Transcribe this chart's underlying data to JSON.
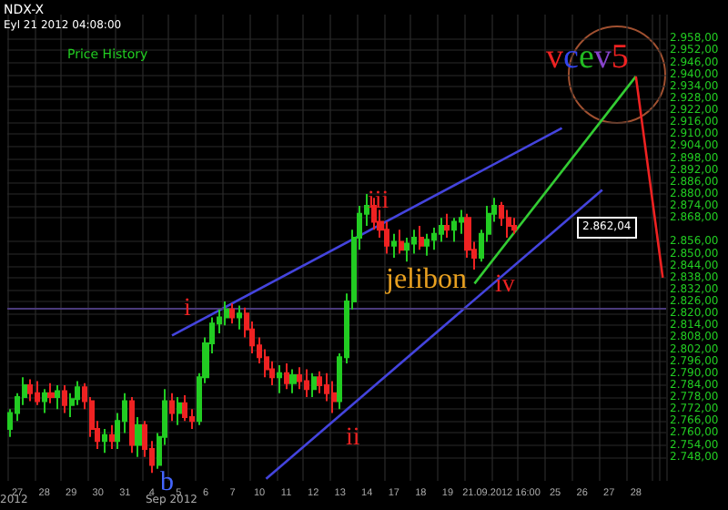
{
  "chart_data": {
    "type": "candlestick",
    "title": "NDX-X",
    "subtitle": "Eyl 21 2012 04:08:00",
    "categories": [
      null,
      "27",
      null,
      null,
      null,
      "28",
      null,
      null,
      null,
      "29",
      null,
      null,
      null,
      "30",
      null,
      null,
      null,
      "31",
      null,
      null,
      null,
      "4",
      null,
      null,
      null,
      "5",
      null,
      null,
      null,
      "6",
      null,
      null,
      null,
      "7",
      null,
      null,
      null,
      "10",
      null,
      null,
      null,
      "11",
      null,
      null,
      null,
      "12",
      null,
      null,
      null,
      "13",
      null,
      null,
      null,
      "14",
      null,
      null,
      null,
      "17",
      null,
      null,
      null,
      "18",
      null,
      null,
      null,
      "19",
      null,
      null,
      null,
      null,
      null,
      null,
      null,
      "21.09.2012 16:00",
      null,
      null,
      null,
      null,
      null,
      null,
      null,
      "25",
      null,
      null,
      null,
      "26",
      null,
      null,
      null,
      "27",
      null,
      null,
      null,
      "28",
      null,
      null,
      null,
      null
    ],
    "series": [
      {
        "name": "Price History",
        "colors": [
          "#22cc22",
          "#22cc22",
          "#22cc22",
          "#ee2222",
          "#ee2222",
          "#22cc22",
          "#ee2222",
          "#22cc22",
          "#ee2222",
          "#22cc22",
          "#22cc22",
          "#ee2222",
          "#ee2222",
          "#ee2222",
          "#22cc22",
          "#ee2222",
          "#22cc22",
          "#22cc22",
          "#ee2222",
          "#22cc22",
          "#ee2222",
          "#ee2222",
          "#22cc22",
          "#22cc22",
          "#ee2222",
          "#22cc22",
          "#ee2222",
          "#ee2222",
          "#22cc22",
          "#22cc22",
          "#22cc22",
          "#22cc22",
          "#22cc22",
          "#ee2222",
          "#22cc22",
          "#ee2222",
          "#ee2222",
          "#ee2222",
          "#ee2222",
          "#ee2222",
          "#22cc22",
          "#ee2222",
          "#22cc22",
          "#ee2222",
          "#ee2222",
          "#22cc22",
          "#ee2222",
          "#ee2222",
          "#ee2222",
          "#22cc22",
          "#22cc22",
          "#22cc22",
          "#22cc22",
          "#22cc22",
          "#ee2222",
          "#ee2222",
          "#ee2222",
          "#22cc22",
          "#ee2222",
          "#22cc22",
          "#22cc22",
          "#ee2222",
          "#22cc22",
          "#22cc22",
          "#22cc22",
          "#ee2222",
          "#22cc22",
          "#22cc22",
          "#ee2222",
          "#ee2222",
          "#22cc22",
          "#22cc22",
          "#22cc22",
          "#ee2222",
          "#ee2222",
          "#ee2222",
          null,
          null,
          null,
          null,
          null,
          null,
          null,
          null,
          null,
          null,
          null,
          null,
          null,
          null,
          null,
          null,
          null,
          null,
          null,
          null,
          null,
          null
        ],
        "ohlc": [
          [
            2762,
            2772,
            2758,
            2770
          ],
          [
            2770,
            2780,
            2766,
            2778
          ],
          [
            2778,
            2788,
            2774,
            2784
          ],
          [
            2784,
            2787,
            2776,
            2780
          ],
          [
            2780,
            2786,
            2774,
            2776
          ],
          [
            2776,
            2782,
            2770,
            2780
          ],
          [
            2780,
            2785,
            2775,
            2778
          ],
          [
            2778,
            2784,
            2772,
            2781
          ],
          [
            2781,
            2784,
            2770,
            2774
          ],
          [
            2774,
            2780,
            2768,
            2777
          ],
          [
            2777,
            2786,
            2774,
            2783
          ],
          [
            2783,
            2785,
            2772,
            2776
          ],
          [
            2776,
            2778,
            2758,
            2762
          ],
          [
            2762,
            2766,
            2752,
            2756
          ],
          [
            2756,
            2762,
            2750,
            2759
          ],
          [
            2759,
            2764,
            2752,
            2756
          ],
          [
            2756,
            2770,
            2752,
            2766
          ],
          [
            2766,
            2780,
            2760,
            2776
          ],
          [
            2776,
            2778,
            2750,
            2754
          ],
          [
            2754,
            2768,
            2748,
            2764
          ],
          [
            2764,
            2766,
            2748,
            2752
          ],
          [
            2752,
            2756,
            2740,
            2744
          ],
          [
            2744,
            2760,
            2742,
            2758
          ],
          [
            2758,
            2782,
            2754,
            2776
          ],
          [
            2776,
            2780,
            2766,
            2770
          ],
          [
            2770,
            2778,
            2764,
            2775
          ],
          [
            2775,
            2779,
            2766,
            2768
          ],
          [
            2768,
            2772,
            2762,
            2766
          ],
          [
            2766,
            2790,
            2764,
            2788
          ],
          [
            2788,
            2808,
            2785,
            2805
          ],
          [
            2805,
            2818,
            2800,
            2815
          ],
          [
            2815,
            2822,
            2810,
            2818
          ],
          [
            2818,
            2826,
            2814,
            2822
          ],
          [
            2822,
            2825,
            2815,
            2818
          ],
          [
            2818,
            2824,
            2812,
            2820
          ],
          [
            2820,
            2823,
            2808,
            2812
          ],
          [
            2812,
            2816,
            2800,
            2804
          ],
          [
            2804,
            2808,
            2795,
            2798
          ],
          [
            2798,
            2802,
            2788,
            2792
          ],
          [
            2792,
            2796,
            2784,
            2788
          ],
          [
            2788,
            2794,
            2780,
            2790
          ],
          [
            2790,
            2795,
            2782,
            2785
          ],
          [
            2785,
            2792,
            2780,
            2789
          ],
          [
            2789,
            2793,
            2782,
            2786
          ],
          [
            2786,
            2792,
            2778,
            2782
          ],
          [
            2782,
            2790,
            2778,
            2788
          ],
          [
            2788,
            2791,
            2780,
            2784
          ],
          [
            2784,
            2790,
            2776,
            2780
          ],
          [
            2780,
            2786,
            2770,
            2776
          ],
          [
            2776,
            2800,
            2772,
            2798
          ],
          [
            2798,
            2830,
            2795,
            2826
          ],
          [
            2826,
            2862,
            2822,
            2858
          ],
          [
            2858,
            2874,
            2852,
            2870
          ],
          [
            2870,
            2880,
            2864,
            2874
          ],
          [
            2874,
            2878,
            2862,
            2866
          ],
          [
            2866,
            2872,
            2858,
            2862
          ],
          [
            2862,
            2866,
            2850,
            2854
          ],
          [
            2854,
            2860,
            2848,
            2856
          ],
          [
            2856,
            2862,
            2850,
            2852
          ],
          [
            2852,
            2858,
            2846,
            2855
          ],
          [
            2855,
            2862,
            2850,
            2858
          ],
          [
            2858,
            2864,
            2852,
            2854
          ],
          [
            2854,
            2860,
            2849,
            2857
          ],
          [
            2857,
            2863,
            2852,
            2860
          ],
          [
            2860,
            2868,
            2856,
            2864
          ],
          [
            2864,
            2870,
            2858,
            2862
          ],
          [
            2862,
            2868,
            2856,
            2866
          ],
          [
            2866,
            2872,
            2860,
            2868
          ],
          [
            2868,
            2870,
            2848,
            2852
          ],
          [
            2852,
            2856,
            2842,
            2848
          ],
          [
            2848,
            2862,
            2846,
            2860
          ],
          [
            2860,
            2874,
            2856,
            2870
          ],
          [
            2870,
            2878,
            2866,
            2874
          ],
          [
            2874,
            2876,
            2864,
            2868
          ],
          [
            2868,
            2872,
            2858,
            2864
          ],
          [
            2864,
            2868,
            2860,
            2862.04
          ],
          null,
          null,
          null,
          null,
          null,
          null,
          null,
          null,
          null,
          null,
          null,
          null,
          null,
          null,
          null,
          null,
          null,
          null,
          null,
          null,
          null,
          null
        ]
      },
      {
        "type": "line",
        "color": "#4444dd",
        "values": [
          null,
          null,
          null,
          null,
          null,
          null,
          null,
          null,
          null,
          null,
          null,
          null,
          null,
          null,
          null,
          null,
          null,
          null,
          null,
          null,
          null,
          null,
          null,
          null,
          2809,
          null,
          null,
          null,
          null,
          null,
          null,
          null,
          null,
          null,
          null,
          null,
          null,
          null,
          null,
          null,
          null,
          null,
          null,
          null,
          null,
          null,
          null,
          null,
          null,
          null,
          null,
          null,
          null,
          null,
          null,
          null,
          null,
          null,
          null,
          null,
          null,
          null,
          null,
          null,
          null,
          null,
          null,
          null,
          null,
          null,
          null,
          null,
          null,
          null,
          null,
          null,
          null,
          null,
          null,
          null,
          null,
          null,
          2913,
          null,
          null,
          null,
          null,
          null,
          null,
          null,
          null,
          null,
          null,
          null,
          null,
          null,
          null,
          null
        ]
      },
      {
        "type": "line",
        "color": "#4444dd",
        "values": [
          null,
          null,
          null,
          null,
          null,
          null,
          null,
          null,
          null,
          null,
          null,
          null,
          null,
          null,
          null,
          null,
          null,
          null,
          null,
          null,
          null,
          null,
          null,
          null,
          null,
          null,
          null,
          null,
          null,
          null,
          null,
          null,
          null,
          null,
          null,
          null,
          null,
          null,
          2737,
          null,
          null,
          null,
          null,
          null,
          null,
          null,
          null,
          null,
          null,
          null,
          null,
          null,
          null,
          null,
          null,
          null,
          null,
          null,
          null,
          null,
          null,
          null,
          null,
          null,
          null,
          null,
          null,
          null,
          null,
          null,
          null,
          null,
          null,
          null,
          null,
          null,
          null,
          null,
          null,
          null,
          null,
          null,
          null,
          null,
          null,
          null,
          null,
          null,
          2882,
          null,
          null,
          null,
          null,
          null,
          null,
          null,
          null,
          null
        ]
      },
      {
        "type": "line",
        "color": "#33cc33",
        "values": [
          null,
          null,
          null,
          null,
          null,
          null,
          null,
          null,
          null,
          null,
          null,
          null,
          null,
          null,
          null,
          null,
          null,
          null,
          null,
          null,
          null,
          null,
          null,
          null,
          null,
          null,
          null,
          null,
          null,
          null,
          null,
          null,
          null,
          null,
          null,
          null,
          null,
          null,
          null,
          null,
          null,
          null,
          null,
          null,
          null,
          null,
          null,
          null,
          null,
          null,
          null,
          null,
          null,
          null,
          null,
          null,
          null,
          null,
          null,
          null,
          null,
          null,
          null,
          null,
          null,
          null,
          null,
          null,
          null,
          2835,
          null,
          null,
          null,
          null,
          null,
          null,
          null,
          null,
          null,
          null,
          null,
          null,
          null,
          null,
          null,
          null,
          null,
          null,
          null,
          null,
          null,
          null,
          null,
          2939,
          null,
          null,
          null,
          null
        ]
      },
      {
        "type": "line",
        "color": "#ee2222",
        "values": [
          null,
          null,
          null,
          null,
          null,
          null,
          null,
          null,
          null,
          null,
          null,
          null,
          null,
          null,
          null,
          null,
          null,
          null,
          null,
          null,
          null,
          null,
          null,
          null,
          null,
          null,
          null,
          null,
          null,
          null,
          null,
          null,
          null,
          null,
          null,
          null,
          null,
          null,
          null,
          null,
          null,
          null,
          null,
          null,
          null,
          null,
          null,
          null,
          null,
          null,
          null,
          null,
          null,
          null,
          null,
          null,
          null,
          null,
          null,
          null,
          null,
          null,
          null,
          null,
          null,
          null,
          null,
          null,
          null,
          null,
          null,
          null,
          null,
          null,
          null,
          null,
          null,
          null,
          null,
          null,
          null,
          null,
          null,
          null,
          null,
          null,
          null,
          null,
          null,
          null,
          null,
          null,
          null,
          2939,
          null,
          null,
          null,
          2838
        ]
      }
    ],
    "ylim": [
      2736,
      2970
    ],
    "yticks": [
      {
        "value": 2748,
        "label": "2.748,00"
      },
      {
        "value": 2754,
        "label": "2.754,00"
      },
      {
        "value": 2760,
        "label": "2.760,00"
      },
      {
        "value": 2766,
        "label": "2.766,00"
      },
      {
        "value": 2772,
        "label": "2.772,00"
      },
      {
        "value": 2778,
        "label": "2.778,00"
      },
      {
        "value": 2784,
        "label": "2.784,00"
      },
      {
        "value": 2790,
        "label": "2.790,00"
      },
      {
        "value": 2796,
        "label": "2.796,00"
      },
      {
        "value": 2802,
        "label": "2.802,00"
      },
      {
        "value": 2808,
        "label": "2.808,00"
      },
      {
        "value": 2814,
        "label": "2.814,00"
      },
      {
        "value": 2820,
        "label": "2.820,00"
      },
      {
        "value": 2826,
        "label": "2.826,00"
      },
      {
        "value": 2832,
        "label": "2.832,00"
      },
      {
        "value": 2838,
        "label": "2.838,00"
      },
      {
        "value": 2844,
        "label": "2.844,00"
      },
      {
        "value": 2850,
        "label": "2.850,00"
      },
      {
        "value": 2856,
        "label": "2.856,00"
      },
      {
        "value": 2868,
        "label": "2.868,00"
      },
      {
        "value": 2874,
        "label": "2.874,00"
      },
      {
        "value": 2880,
        "label": "2.880,00"
      },
      {
        "value": 2886,
        "label": "2.886,00"
      },
      {
        "value": 2892,
        "label": "2.892,00"
      },
      {
        "value": 2898,
        "label": "2.898,00"
      },
      {
        "value": 2904,
        "label": "2.904,00"
      },
      {
        "value": 2910,
        "label": "2.910,00"
      },
      {
        "value": 2916,
        "label": "2.916,00"
      },
      {
        "value": 2922,
        "label": "2.922,00"
      },
      {
        "value": 2928,
        "label": "2.928,00"
      },
      {
        "value": 2934,
        "label": "2.934,00"
      },
      {
        "value": 2940,
        "label": "2.940,00"
      },
      {
        "value": 2946,
        "label": "2.946,00"
      },
      {
        "value": 2952,
        "label": "2.952,00"
      },
      {
        "value": 2958,
        "label": "2.958,00"
      }
    ],
    "ref_lines": [
      {
        "axis": "y",
        "value": 2823,
        "color": "#4a3a7a"
      }
    ],
    "grid": true,
    "legend": "top left",
    "annotations": [
      "i",
      "ii",
      "iii",
      "iv",
      "b",
      "jelibon",
      "vcev5",
      "2012",
      "Sep 2012",
      "2.862,04"
    ]
  }
}
